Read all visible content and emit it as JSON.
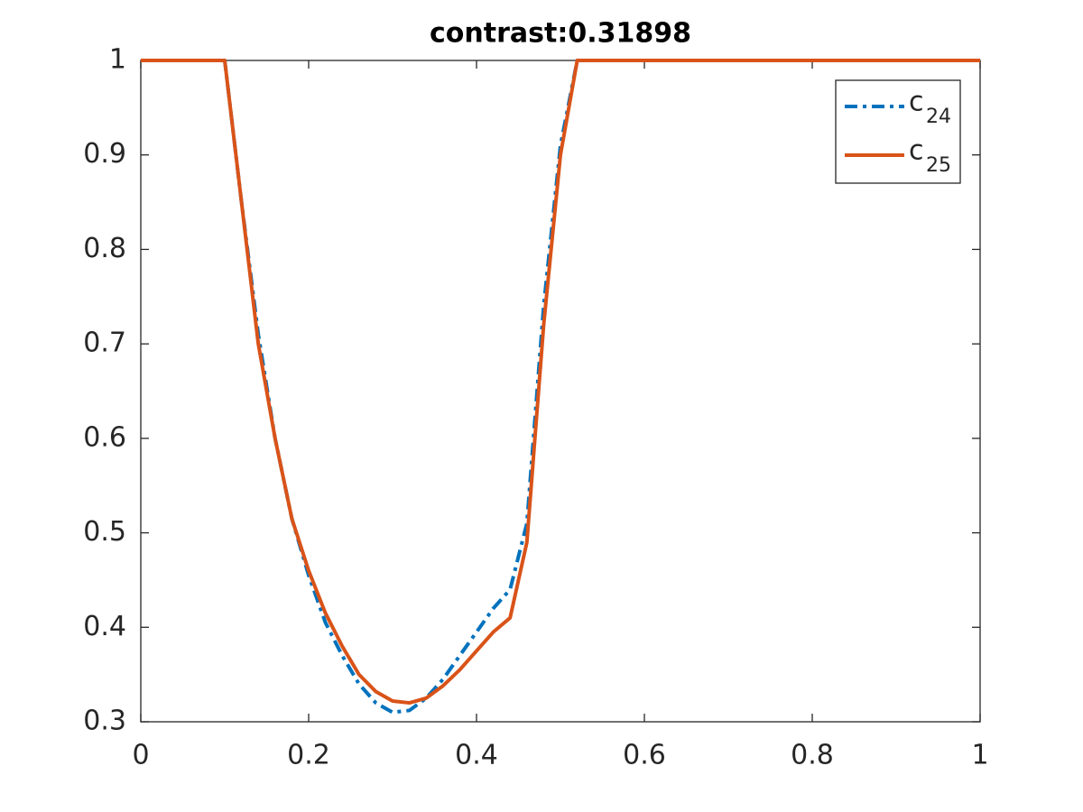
{
  "chart_data": {
    "type": "line",
    "title": "contrast:0.31898",
    "x": [
      0,
      0.1,
      0.12,
      0.14,
      0.16,
      0.18,
      0.2,
      0.22,
      0.24,
      0.26,
      0.28,
      0.3,
      0.32,
      0.34,
      0.36,
      0.38,
      0.4,
      0.42,
      0.44,
      0.46,
      0.48,
      0.5,
      0.52,
      1
    ],
    "series": [
      {
        "name": "c",
        "subscript": "24",
        "color": "#0072bd",
        "dashed": true,
        "values": [
          1,
          1,
          0.85,
          0.71,
          0.6,
          0.515,
          0.455,
          0.405,
          0.37,
          0.34,
          0.32,
          0.31,
          0.312,
          0.325,
          0.345,
          0.37,
          0.395,
          0.42,
          0.44,
          0.51,
          0.74,
          0.91,
          1,
          1
        ]
      },
      {
        "name": "c",
        "subscript": "25",
        "color": "#d95319",
        "dashed": false,
        "values": [
          1,
          1,
          0.85,
          0.7,
          0.6,
          0.515,
          0.46,
          0.415,
          0.38,
          0.35,
          0.332,
          0.322,
          0.32,
          0.325,
          0.338,
          0.355,
          0.375,
          0.395,
          0.41,
          0.49,
          0.72,
          0.9,
          1,
          1
        ]
      }
    ],
    "xlim": [
      0,
      1
    ],
    "xticks": [
      0,
      0.2,
      0.4,
      0.6,
      0.8,
      1
    ],
    "ylim": [
      0.3,
      1
    ],
    "yticks": [
      0.3,
      0.4,
      0.5,
      0.6,
      0.7,
      0.8,
      0.9,
      1
    ],
    "grid": false,
    "legend": "northeast"
  }
}
